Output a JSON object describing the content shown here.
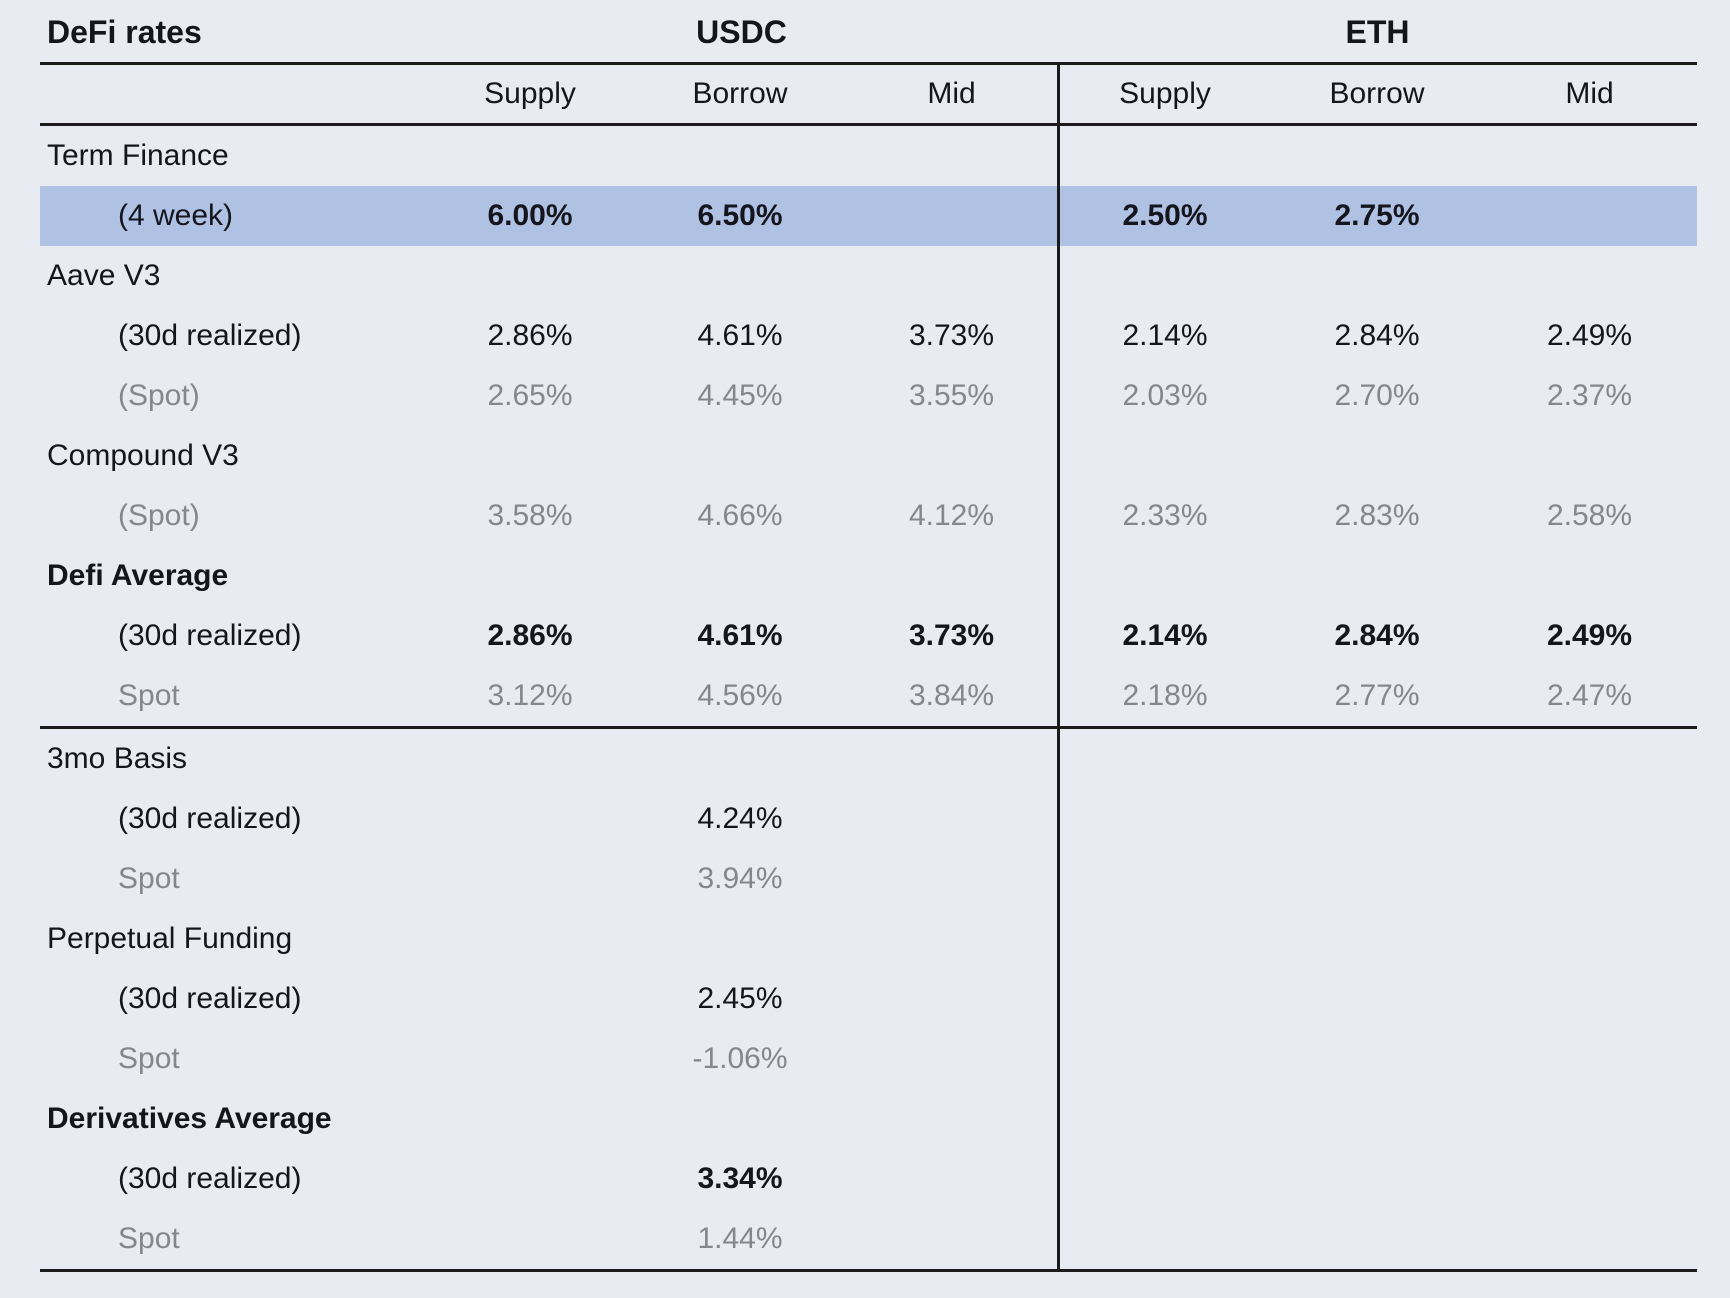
{
  "colors": {
    "background": "#e8ebf2",
    "highlight_row": "#b0c2e4",
    "text": "#15151d",
    "muted_text": "#86868e",
    "rule_line": "#1b1b1b"
  },
  "header": {
    "title": "DeFi rates",
    "groups": [
      "USDC",
      "ETH"
    ],
    "columns": [
      "Supply",
      "Borrow",
      "Mid",
      "Supply",
      "Borrow",
      "Mid"
    ]
  },
  "rows": [
    {
      "label": "Term Finance"
    },
    {
      "label": "(4 week)",
      "indent": true,
      "highlight": true,
      "bold_values": true,
      "values": [
        "6.00%",
        "6.50%",
        "",
        "2.50%",
        "2.75%",
        ""
      ]
    },
    {
      "label": "Aave V3"
    },
    {
      "label": "(30d realized)",
      "indent": true,
      "values": [
        "2.86%",
        "4.61%",
        "3.73%",
        "2.14%",
        "2.84%",
        "2.49%"
      ]
    },
    {
      "label": "(Spot)",
      "indent": true,
      "gray": true,
      "values": [
        "2.65%",
        "4.45%",
        "3.55%",
        "2.03%",
        "2.70%",
        "2.37%"
      ]
    },
    {
      "label": "Compound V3"
    },
    {
      "label": "(Spot)",
      "indent": true,
      "gray": true,
      "values": [
        "3.58%",
        "4.66%",
        "4.12%",
        "2.33%",
        "2.83%",
        "2.58%"
      ]
    },
    {
      "label": "Defi Average",
      "bold_label": true
    },
    {
      "label": "(30d realized)",
      "indent": true,
      "bold_values": true,
      "values": [
        "2.86%",
        "4.61%",
        "3.73%",
        "2.14%",
        "2.84%",
        "2.49%"
      ]
    },
    {
      "label": "Spot",
      "indent": true,
      "gray": true,
      "divider_after": true,
      "values": [
        "3.12%",
        "4.56%",
        "3.84%",
        "2.18%",
        "2.77%",
        "2.47%"
      ]
    },
    {
      "label": "3mo Basis"
    },
    {
      "label": "(30d realized)",
      "indent": true,
      "values": [
        "",
        "4.24%",
        "",
        "",
        "",
        ""
      ]
    },
    {
      "label": "Spot",
      "indent": true,
      "gray": true,
      "values": [
        "",
        "3.94%",
        "",
        "",
        "",
        ""
      ]
    },
    {
      "label": "Perpetual Funding"
    },
    {
      "label": "(30d realized)",
      "indent": true,
      "values": [
        "",
        "2.45%",
        "",
        "",
        "",
        ""
      ]
    },
    {
      "label": "Spot",
      "indent": true,
      "gray": true,
      "values": [
        "",
        "-1.06%",
        "",
        "",
        "",
        ""
      ]
    },
    {
      "label": "Derivatives Average",
      "bold_label": true
    },
    {
      "label": "(30d realized)",
      "indent": true,
      "bold_values": true,
      "values": [
        "",
        "3.34%",
        "",
        "",
        "",
        ""
      ]
    },
    {
      "label": "Spot",
      "indent": true,
      "gray": true,
      "values": [
        "",
        "1.44%",
        "",
        "",
        "",
        ""
      ]
    }
  ],
  "chart_data": {
    "type": "table",
    "title": "DeFi rates",
    "column_groups": [
      "USDC",
      "ETH"
    ],
    "columns": [
      "Supply",
      "Borrow",
      "Mid"
    ],
    "rows": [
      {
        "section": "Term Finance",
        "metric": "(4 week)",
        "highlighted": true,
        "USDC": {
          "Supply": "6.00%",
          "Borrow": "6.50%"
        },
        "ETH": {
          "Supply": "2.50%",
          "Borrow": "2.75%"
        }
      },
      {
        "section": "Aave V3",
        "metric": "(30d realized)",
        "USDC": {
          "Supply": "2.86%",
          "Borrow": "4.61%",
          "Mid": "3.73%"
        },
        "ETH": {
          "Supply": "2.14%",
          "Borrow": "2.84%",
          "Mid": "2.49%"
        }
      },
      {
        "section": "Aave V3",
        "metric": "(Spot)",
        "USDC": {
          "Supply": "2.65%",
          "Borrow": "4.45%",
          "Mid": "3.55%"
        },
        "ETH": {
          "Supply": "2.03%",
          "Borrow": "2.70%",
          "Mid": "2.37%"
        }
      },
      {
        "section": "Compound V3",
        "metric": "(Spot)",
        "USDC": {
          "Supply": "3.58%",
          "Borrow": "4.66%",
          "Mid": "4.12%"
        },
        "ETH": {
          "Supply": "2.33%",
          "Borrow": "2.83%",
          "Mid": "2.58%"
        }
      },
      {
        "section": "Defi Average",
        "metric": "(30d realized)",
        "USDC": {
          "Supply": "2.86%",
          "Borrow": "4.61%",
          "Mid": "3.73%"
        },
        "ETH": {
          "Supply": "2.14%",
          "Borrow": "2.84%",
          "Mid": "2.49%"
        }
      },
      {
        "section": "Defi Average",
        "metric": "Spot",
        "USDC": {
          "Supply": "3.12%",
          "Borrow": "4.56%",
          "Mid": "3.84%"
        },
        "ETH": {
          "Supply": "2.18%",
          "Borrow": "2.77%",
          "Mid": "2.47%"
        }
      },
      {
        "section": "3mo Basis",
        "metric": "(30d realized)",
        "USDC": {
          "Borrow": "4.24%"
        }
      },
      {
        "section": "3mo Basis",
        "metric": "Spot",
        "USDC": {
          "Borrow": "3.94%"
        }
      },
      {
        "section": "Perpetual Funding",
        "metric": "(30d realized)",
        "USDC": {
          "Borrow": "2.45%"
        }
      },
      {
        "section": "Perpetual Funding",
        "metric": "Spot",
        "USDC": {
          "Borrow": "-1.06%"
        }
      },
      {
        "section": "Derivatives Average",
        "metric": "(30d realized)",
        "USDC": {
          "Borrow": "3.34%"
        }
      },
      {
        "section": "Derivatives Average",
        "metric": "Spot",
        "USDC": {
          "Borrow": "1.44%"
        }
      }
    ]
  }
}
